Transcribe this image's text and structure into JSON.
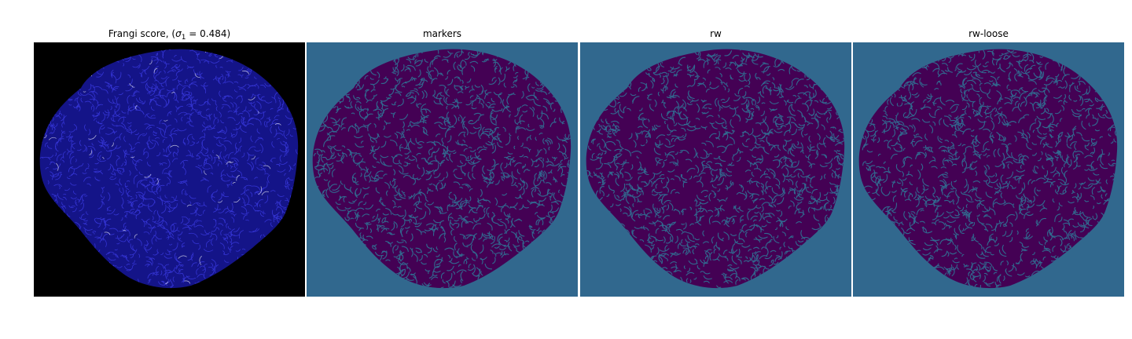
{
  "figure": {
    "colors": {
      "frangi_background": "#000000",
      "frangi_fill": "#141488",
      "frangi_texture": "#3a3ae0",
      "frangi_highlight": "#ffffff",
      "label_background": "#31688e",
      "label_fill": "#440154",
      "label_texture": "#31688e"
    },
    "panels": [
      {
        "title_prefix": "Frangi score, (",
        "title_symbol": "σ",
        "title_subscript": "1",
        "title_suffix": " = 0.484)",
        "image_kind": "frangi-vesselness-map"
      },
      {
        "title": "markers",
        "image_kind": "label-map"
      },
      {
        "title": "rw",
        "image_kind": "label-map"
      },
      {
        "title": "rw-loose",
        "image_kind": "label-map"
      }
    ]
  }
}
